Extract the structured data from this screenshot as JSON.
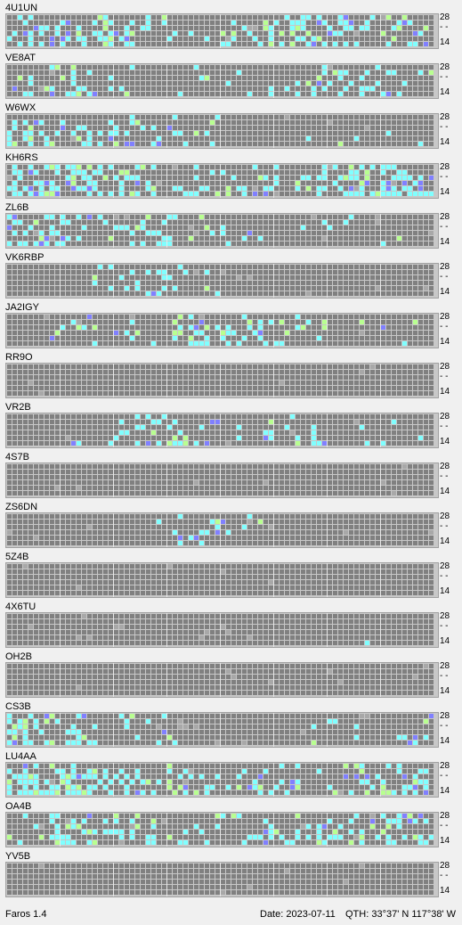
{
  "colors": {
    "background": "#f0f0f0",
    "cell": "#808080",
    "cell_faint": "#a8a8a8",
    "cell_cyan": "#80ffff",
    "cell_green": "#b8ff90",
    "cell_blue": "#8080ff",
    "gridline": "#c8c8c8"
  },
  "axis": {
    "top": "28",
    "mid": "- -",
    "bottom": "14"
  },
  "stations": [
    {
      "call": "4U1UN",
      "seed": 11,
      "density": 0.55,
      "activity": [
        0.35,
        0.42,
        0.65,
        0.2,
        0.15,
        0.3,
        0.55,
        0.6,
        0.2,
        0.35
      ]
    },
    {
      "call": "VE8AT",
      "seed": 23,
      "density": 0.2,
      "activity": [
        0.25,
        0.3,
        0.2,
        0.05,
        0.1,
        0.05,
        0.25,
        0.35,
        0.3,
        0.2
      ]
    },
    {
      "call": "W6WX",
      "seed": 37,
      "density": 0.18,
      "activity": [
        0.4,
        0.35,
        0.3,
        0.25,
        0.2,
        0.05,
        0.0,
        0.05,
        0.05,
        0.02
      ]
    },
    {
      "call": "KH6RS",
      "seed": 41,
      "density": 0.55,
      "activity": [
        0.7,
        0.75,
        0.5,
        0.35,
        0.25,
        0.2,
        0.4,
        0.6,
        0.65,
        0.6
      ]
    },
    {
      "call": "ZL6B",
      "seed": 53,
      "density": 0.25,
      "activity": [
        0.55,
        0.5,
        0.35,
        0.25,
        0.05,
        0.1,
        0.1,
        0.05,
        0.1,
        0.05
      ]
    },
    {
      "call": "VK6RBP",
      "seed": 67,
      "density": 0.1,
      "activity": [
        0.0,
        0.0,
        0.15,
        0.25,
        0.05,
        0.0,
        0.0,
        0.0,
        0.0,
        0.0
      ]
    },
    {
      "call": "JA2IGY",
      "seed": 71,
      "density": 0.18,
      "activity": [
        0.0,
        0.15,
        0.2,
        0.15,
        0.45,
        0.35,
        0.25,
        0.05,
        0.05,
        0.05
      ]
    },
    {
      "call": "RR9O",
      "seed": 83,
      "density": 0.0,
      "activity": [
        0.0,
        0.0,
        0.0,
        0.0,
        0.0,
        0.0,
        0.0,
        0.0,
        0.0,
        0.0
      ]
    },
    {
      "call": "VR2B",
      "seed": 97,
      "density": 0.22,
      "activity": [
        0.0,
        0.05,
        0.15,
        0.45,
        0.3,
        0.1,
        0.3,
        0.2,
        0.1,
        0.05
      ]
    },
    {
      "call": "4S7B",
      "seed": 101,
      "density": 0.0,
      "activity": [
        0.0,
        0.0,
        0.0,
        0.0,
        0.0,
        0.0,
        0.0,
        0.0,
        0.0,
        0.0
      ]
    },
    {
      "call": "ZS6DN",
      "seed": 113,
      "density": 0.1,
      "activity": [
        0.0,
        0.0,
        0.0,
        0.05,
        0.3,
        0.25,
        0.0,
        0.0,
        0.0,
        0.0
      ]
    },
    {
      "call": "5Z4B",
      "seed": 127,
      "density": 0.0,
      "activity": [
        0.0,
        0.0,
        0.0,
        0.0,
        0.0,
        0.0,
        0.0,
        0.0,
        0.0,
        0.0
      ]
    },
    {
      "call": "4X6TU",
      "seed": 131,
      "density": 0.02,
      "activity": [
        0.0,
        0.0,
        0.0,
        0.0,
        0.0,
        0.0,
        0.0,
        0.0,
        0.05,
        0.0
      ]
    },
    {
      "call": "OH2B",
      "seed": 139,
      "density": 0.0,
      "activity": [
        0.0,
        0.0,
        0.0,
        0.0,
        0.0,
        0.0,
        0.0,
        0.0,
        0.0,
        0.0
      ]
    },
    {
      "call": "CS3B",
      "seed": 149,
      "density": 0.3,
      "activity": [
        0.6,
        0.5,
        0.35,
        0.1,
        0.0,
        0.0,
        0.0,
        0.05,
        0.1,
        0.15
      ]
    },
    {
      "call": "LU4AA",
      "seed": 157,
      "density": 0.45,
      "activity": [
        0.65,
        0.7,
        0.5,
        0.3,
        0.4,
        0.35,
        0.25,
        0.1,
        0.3,
        0.45
      ]
    },
    {
      "call": "OA4B",
      "seed": 163,
      "density": 0.3,
      "activity": [
        0.15,
        0.55,
        0.4,
        0.25,
        0.15,
        0.1,
        0.4,
        0.35,
        0.4,
        0.3
      ]
    },
    {
      "call": "YV5B",
      "seed": 173,
      "density": 0.0,
      "activity": [
        0.0,
        0.0,
        0.0,
        0.0,
        0.0,
        0.0,
        0.0,
        0.0,
        0.0,
        0.0
      ]
    }
  ],
  "status": {
    "app": "Faros 1.4",
    "date": "Date: 2023-07-11",
    "qth": "QTH: 33°37' N  117°38' W"
  }
}
